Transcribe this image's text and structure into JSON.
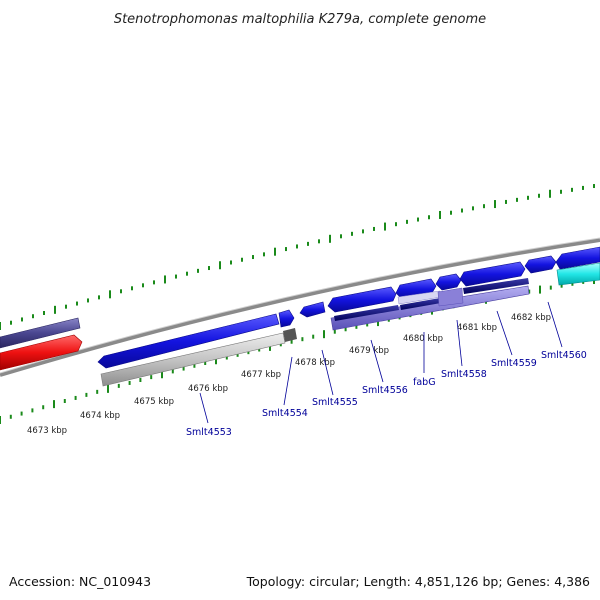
{
  "title": "Stenotrophomonas maltophilia K279a, complete genome",
  "footer": {
    "accession": "Accession: NC_010943",
    "stats": "Topology: circular; Length: 4,851,126 bp; Genes: 4,386"
  },
  "scale_labels": [
    "4673 kbp",
    "4674 kbp",
    "4675 kbp",
    "4676 kbp",
    "4677 kbp",
    "4678 kbp",
    "4679 kbp",
    "4680 kbp",
    "4681 kbp",
    "4682 kbp"
  ],
  "gene_labels": [
    "Smlt4553",
    "Smlt4554",
    "Smlt4555",
    "Smlt4556",
    "fabG",
    "Smlt4558",
    "Smlt4559",
    "Smlt4560"
  ],
  "colors": {
    "cds": "#1111dd",
    "cds_dark": "#00006b",
    "rna": "#ee1111",
    "skew_gray": "#bbbbbb",
    "gc_dark": "#444488",
    "purple": "#7a6fcf",
    "cyan": "#11dddd",
    "tick_green": "#1a8a1a",
    "backbone": "#8a8a8a"
  }
}
